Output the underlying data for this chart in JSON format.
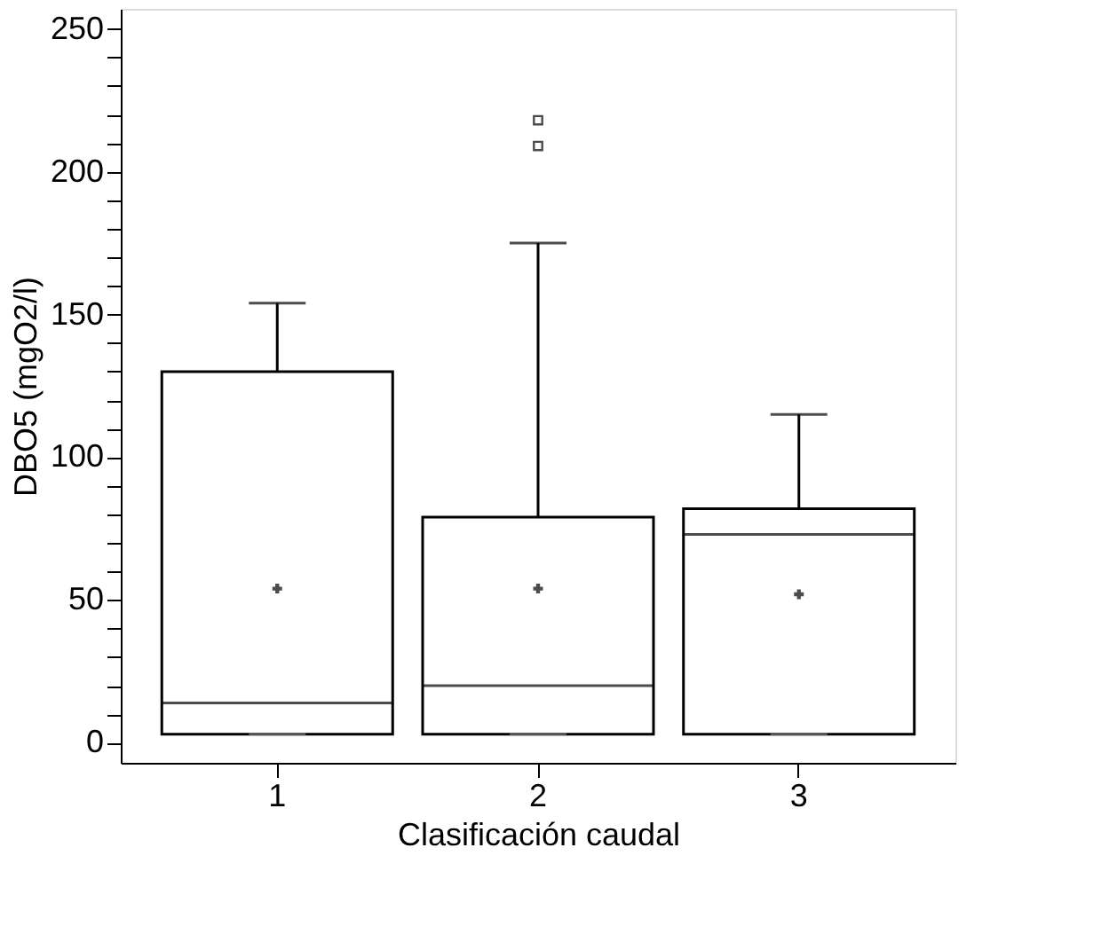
{
  "chart_data": {
    "type": "box",
    "xlabel": "Clasificación caudal",
    "ylabel": "DBO5 (mgO2/l)",
    "categories": [
      "1",
      "2",
      "3"
    ],
    "boxes": [
      {
        "low": 3,
        "q1": 3,
        "median": 14,
        "q3": 130,
        "high": 154,
        "mean": 54
      },
      {
        "low": 3,
        "q1": 3,
        "median": 20,
        "q3": 79,
        "high": 175,
        "mean": 54,
        "outliers": [
          209,
          218
        ]
      },
      {
        "low": 3,
        "q1": 3,
        "median": 73,
        "q3": 82,
        "high": 115,
        "mean": 52
      }
    ],
    "ylim": [
      -7,
      257
    ],
    "yticks": [
      0,
      {
        "value": 10,
        "label": null
      },
      {
        "value": 20,
        "label": null
      },
      {
        "value": 30,
        "label": null
      },
      {
        "value": 40,
        "label": null
      },
      50,
      {
        "value": 60,
        "label": null
      },
      {
        "value": 70,
        "label": null
      },
      {
        "value": 80,
        "label": null
      },
      {
        "value": 90,
        "label": null
      },
      100,
      {
        "value": 110,
        "label": null
      },
      {
        "value": 120,
        "label": null
      },
      {
        "value": 130,
        "label": null
      },
      {
        "value": 140,
        "label": null
      },
      150,
      {
        "value": 160,
        "label": null
      },
      {
        "value": 170,
        "label": null
      },
      {
        "value": 180,
        "label": null
      },
      {
        "value": 190,
        "label": null
      },
      200,
      {
        "value": 210,
        "label": null
      },
      {
        "value": 220,
        "label": null
      },
      {
        "value": 230,
        "label": null
      },
      {
        "value": 240,
        "label": null
      },
      250
    ],
    "grid": false
  }
}
